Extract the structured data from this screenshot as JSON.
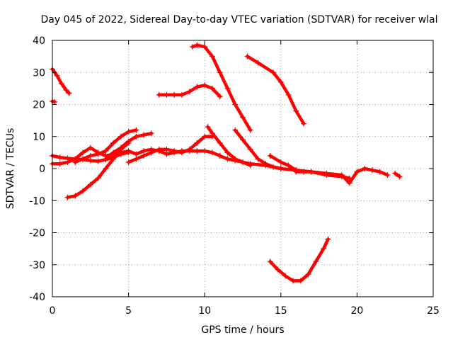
{
  "chart_data": {
    "type": "scatter",
    "title": "Day 045 of 2022, Sidereal Day-to-day VTEC variation (SDTVAR) for receiver wlal",
    "xlabel": "GPS time / hours",
    "ylabel": "SDTVAR / TECUs",
    "xlim": [
      0,
      25
    ],
    "ylim": [
      -40,
      40
    ],
    "xticks": [
      0,
      5,
      10,
      15,
      20,
      25
    ],
    "yticks": [
      -40,
      -30,
      -20,
      -10,
      0,
      10,
      20,
      30,
      40
    ],
    "grid": true,
    "marker": "+",
    "color": "#ff0000",
    "series": [
      {
        "name": "s1",
        "points": [
          [
            0,
            31
          ],
          [
            0.3,
            29
          ],
          [
            0.6,
            26.5
          ],
          [
            0.9,
            24.5
          ],
          [
            1.1,
            23.5
          ]
        ]
      },
      {
        "name": "s2",
        "points": [
          [
            0,
            21
          ],
          [
            0.15,
            20.8
          ]
        ]
      },
      {
        "name": "s3",
        "points": [
          [
            0,
            4
          ],
          [
            0.5,
            3.5
          ],
          [
            1,
            3.2
          ],
          [
            1.5,
            3
          ],
          [
            2,
            2.8
          ],
          [
            2.5,
            2.5
          ],
          [
            3,
            2.3
          ],
          [
            3.5,
            2.8
          ],
          [
            4,
            3.5
          ],
          [
            4.5,
            4.5
          ],
          [
            5,
            5
          ]
        ]
      },
      {
        "name": "s4",
        "points": [
          [
            0,
            1.5
          ],
          [
            0.5,
            1.5
          ],
          [
            1,
            2
          ],
          [
            1.5,
            3
          ],
          [
            2,
            5
          ],
          [
            2.5,
            6.5
          ],
          [
            3,
            5
          ],
          [
            3.5,
            4
          ],
          [
            4,
            4.5
          ],
          [
            4.5,
            5
          ],
          [
            5,
            5.5
          ],
          [
            5.5,
            4.5
          ],
          [
            6,
            5.5
          ],
          [
            6.5,
            6
          ],
          [
            7,
            5.5
          ],
          [
            7.5,
            4.5
          ],
          [
            8,
            5
          ],
          [
            8.5,
            5.5
          ],
          [
            9,
            5.5
          ],
          [
            9.5,
            5.5
          ],
          [
            10,
            5.5
          ],
          [
            10.5,
            5
          ],
          [
            11,
            4
          ],
          [
            11.5,
            3
          ],
          [
            12,
            2.5
          ],
          [
            12.5,
            2
          ],
          [
            13,
            1.5
          ],
          [
            14,
            1
          ],
          [
            15,
            0
          ],
          [
            16,
            -0.5
          ],
          [
            17,
            -1
          ],
          [
            18,
            -2
          ],
          [
            19,
            -2.5
          ],
          [
            19.5,
            -3
          ]
        ]
      },
      {
        "name": "s5",
        "points": [
          [
            1,
            -9
          ],
          [
            1.5,
            -8.5
          ],
          [
            2,
            -7
          ],
          [
            2.5,
            -5
          ],
          [
            3,
            -3
          ],
          [
            3.5,
            0
          ],
          [
            4,
            3
          ],
          [
            4.5,
            6
          ],
          [
            5,
            8
          ]
        ]
      },
      {
        "name": "s6",
        "points": [
          [
            1.5,
            2
          ],
          [
            2,
            3
          ],
          [
            2.5,
            4
          ],
          [
            3,
            4.5
          ],
          [
            3.5,
            5.5
          ],
          [
            4,
            8
          ],
          [
            4.5,
            10
          ],
          [
            5,
            11.5
          ],
          [
            5.5,
            12
          ]
        ]
      },
      {
        "name": "s7",
        "points": [
          [
            3.5,
            3
          ],
          [
            4,
            5
          ],
          [
            4.5,
            6.5
          ],
          [
            5,
            8.5
          ],
          [
            5.5,
            10
          ],
          [
            6,
            10.5
          ],
          [
            6.5,
            11
          ]
        ]
      },
      {
        "name": "s8",
        "points": [
          [
            5,
            2
          ],
          [
            5.5,
            3
          ],
          [
            6,
            4
          ],
          [
            6.5,
            5
          ],
          [
            7,
            6
          ],
          [
            7.5,
            6
          ],
          [
            8,
            5.5
          ],
          [
            8.5,
            5
          ],
          [
            9,
            6
          ],
          [
            9.5,
            8
          ],
          [
            10,
            10
          ],
          [
            10.5,
            10
          ]
        ]
      },
      {
        "name": "s9",
        "points": [
          [
            7,
            23
          ],
          [
            7.5,
            23
          ],
          [
            8,
            23
          ],
          [
            8.5,
            23
          ],
          [
            9,
            24
          ],
          [
            9.5,
            25.5
          ],
          [
            10,
            26
          ],
          [
            10.5,
            25
          ],
          [
            11,
            22.5
          ]
        ]
      },
      {
        "name": "s10",
        "points": [
          [
            9.2,
            38
          ],
          [
            9.5,
            38.5
          ],
          [
            10,
            38
          ],
          [
            10.5,
            35
          ],
          [
            11,
            30
          ],
          [
            11.5,
            25
          ],
          [
            12,
            20
          ],
          [
            12.5,
            16
          ],
          [
            13,
            12
          ]
        ]
      },
      {
        "name": "s11",
        "points": [
          [
            10.2,
            13
          ],
          [
            10.5,
            11
          ],
          [
            11,
            8
          ],
          [
            11.5,
            5
          ],
          [
            12,
            3
          ],
          [
            12.5,
            2
          ],
          [
            13,
            1
          ]
        ]
      },
      {
        "name": "s12",
        "points": [
          [
            12,
            12
          ],
          [
            12.5,
            9
          ],
          [
            13,
            6
          ],
          [
            13.5,
            3
          ],
          [
            14,
            1.5
          ],
          [
            14.5,
            0.5
          ],
          [
            15,
            0
          ]
        ]
      },
      {
        "name": "s13",
        "points": [
          [
            12.8,
            35
          ],
          [
            13.5,
            33
          ],
          [
            14.5,
            30
          ],
          [
            15,
            27
          ],
          [
            15.5,
            23
          ],
          [
            16,
            18
          ],
          [
            16.5,
            14
          ]
        ]
      },
      {
        "name": "s14",
        "points": [
          [
            14.3,
            4
          ],
          [
            15,
            2
          ],
          [
            15.5,
            1
          ],
          [
            16,
            -0.5
          ],
          [
            16.5,
            -1
          ],
          [
            17,
            -1
          ]
        ]
      },
      {
        "name": "s15",
        "points": [
          [
            16,
            -1
          ],
          [
            17,
            -1
          ],
          [
            18,
            -1.5
          ],
          [
            19,
            -2
          ],
          [
            19.5,
            -4.5
          ],
          [
            20,
            -1
          ],
          [
            20.5,
            0
          ],
          [
            21,
            -0.5
          ],
          [
            21.5,
            -1
          ],
          [
            22,
            -2
          ]
        ]
      },
      {
        "name": "s16",
        "points": [
          [
            22.5,
            -1.5
          ],
          [
            22.8,
            -2.5
          ]
        ]
      },
      {
        "name": "s17",
        "points": [
          [
            14.3,
            -29
          ],
          [
            14.8,
            -31.5
          ],
          [
            15.3,
            -33.5
          ],
          [
            15.8,
            -35
          ],
          [
            16.3,
            -35
          ],
          [
            16.8,
            -33
          ],
          [
            17.3,
            -29
          ],
          [
            17.8,
            -25
          ],
          [
            18.1,
            -22
          ]
        ]
      }
    ]
  }
}
